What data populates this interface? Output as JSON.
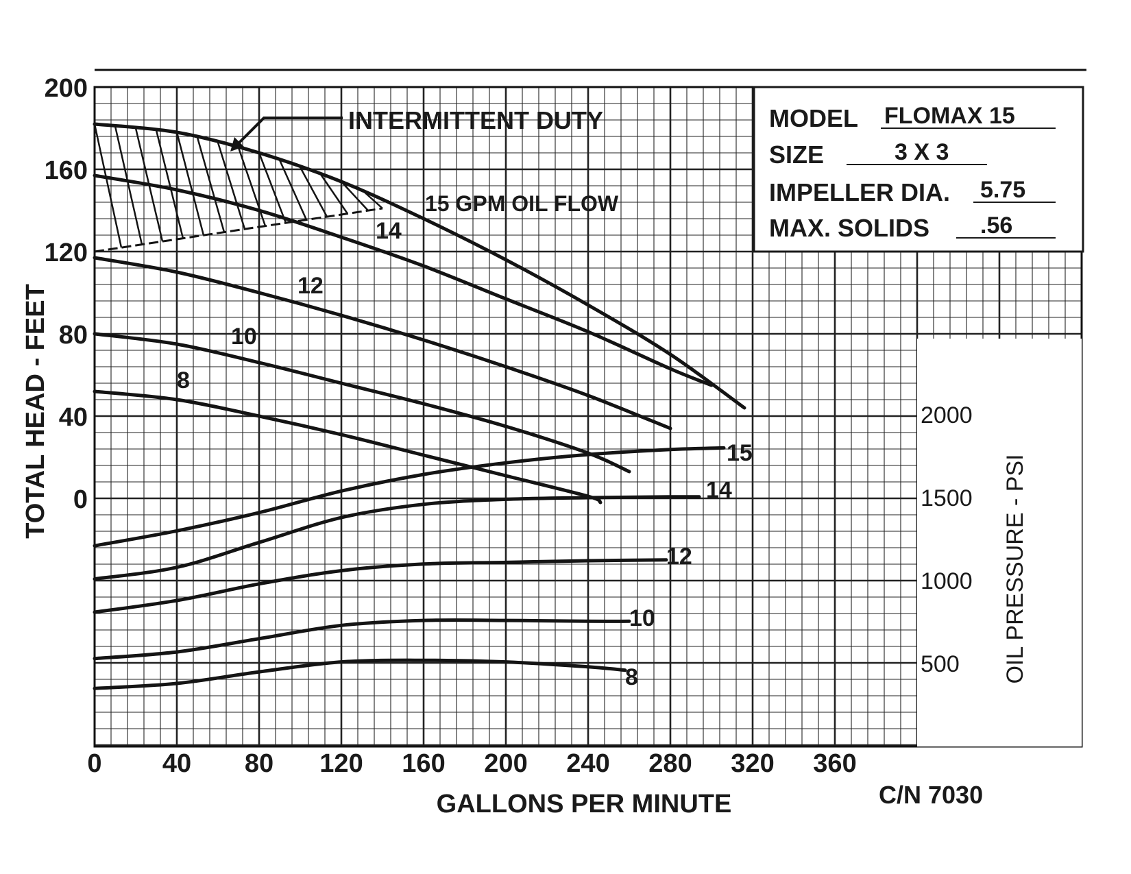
{
  "chart_data": {
    "type": "line",
    "title": "",
    "xlabel": "GALLONS PER MINUTE",
    "ylabel_left": "TOTAL HEAD - FEET",
    "ylabel_right": "OIL PRESSURE - PSI",
    "x_ticks": [
      "0",
      "40",
      "80",
      "120",
      "160",
      "200",
      "240",
      "280",
      "320",
      "360"
    ],
    "y_left_ticks": [
      "200",
      "160",
      "120",
      "80",
      "40",
      "0"
    ],
    "y_right_ticks": [
      "2000",
      "1500",
      "1000",
      "500"
    ],
    "xlim": [
      0,
      480
    ],
    "ylim_head": [
      -118,
      200
    ],
    "ylim_psi": [
      0,
      3000
    ],
    "grid": true,
    "info_box": {
      "model_label": "MODEL",
      "model_value": "FLOMAX 15",
      "size_label": "SIZE",
      "size_value": "3 X 3",
      "impeller_label": "IMPELLER DIA.",
      "impeller_value": "5.75",
      "solids_label": "MAX. SOLIDS",
      "solids_value": ".56"
    },
    "annotations": {
      "intermittent": "INTERMITTENT DUTY",
      "oil_flow": "15 GPM OIL FLOW",
      "code": "C/N 7030"
    },
    "head_series": [
      {
        "name": "15",
        "label": "",
        "x": [
          0,
          40,
          80,
          120,
          160,
          200,
          240,
          280,
          316
        ],
        "y": [
          182,
          178,
          168,
          154,
          136,
          116,
          94,
          70,
          44
        ]
      },
      {
        "name": "14",
        "label": "14",
        "x": [
          0,
          40,
          80,
          120,
          160,
          200,
          240,
          280,
          300
        ],
        "y": [
          157,
          150,
          140,
          127,
          113,
          97,
          81,
          63,
          55
        ]
      },
      {
        "name": "12",
        "label": "12",
        "x": [
          0,
          40,
          80,
          120,
          160,
          200,
          240,
          280
        ],
        "y": [
          117,
          110,
          100,
          89,
          77,
          64,
          50,
          34
        ]
      },
      {
        "name": "10",
        "label": "10",
        "x": [
          0,
          40,
          80,
          120,
          160,
          200,
          240,
          260
        ],
        "y": [
          80,
          75,
          66,
          56,
          46,
          35,
          22,
          13
        ]
      },
      {
        "name": "8",
        "label": "8",
        "x": [
          0,
          40,
          80,
          120,
          160,
          200,
          240,
          246
        ],
        "y": [
          52,
          48,
          40,
          31,
          21,
          11,
          1,
          -2
        ]
      }
    ],
    "psi_series": [
      {
        "name": "15",
        "label": "15",
        "x": [
          0,
          40,
          80,
          120,
          160,
          200,
          240,
          280,
          306
        ],
        "y": [
          1210,
          1300,
          1410,
          1540,
          1640,
          1710,
          1760,
          1790,
          1800
        ]
      },
      {
        "name": "14",
        "label": "14",
        "x": [
          0,
          40,
          80,
          120,
          160,
          200,
          240,
          280,
          294
        ],
        "y": [
          1010,
          1080,
          1230,
          1380,
          1460,
          1490,
          1500,
          1505,
          1505
        ]
      },
      {
        "name": "12",
        "label": "12",
        "x": [
          0,
          40,
          80,
          120,
          160,
          200,
          240,
          278
        ],
        "y": [
          810,
          880,
          980,
          1060,
          1100,
          1110,
          1120,
          1125
        ]
      },
      {
        "name": "10",
        "label": "10",
        "x": [
          0,
          40,
          80,
          120,
          160,
          200,
          240,
          260
        ],
        "y": [
          530,
          570,
          650,
          730,
          760,
          760,
          755,
          755
        ]
      },
      {
        "name": "8",
        "label": "8",
        "x": [
          0,
          40,
          80,
          120,
          160,
          200,
          240,
          258
        ],
        "y": [
          350,
          380,
          450,
          510,
          520,
          510,
          480,
          460
        ]
      }
    ],
    "intermittent_region": {
      "upper_x": [
        0,
        40,
        80,
        120,
        140
      ],
      "upper_y": [
        182,
        178,
        168,
        154,
        146
      ],
      "lower_x": [
        0,
        40,
        80,
        120,
        140
      ],
      "lower_y": [
        120,
        126,
        132,
        138,
        141
      ]
    }
  }
}
